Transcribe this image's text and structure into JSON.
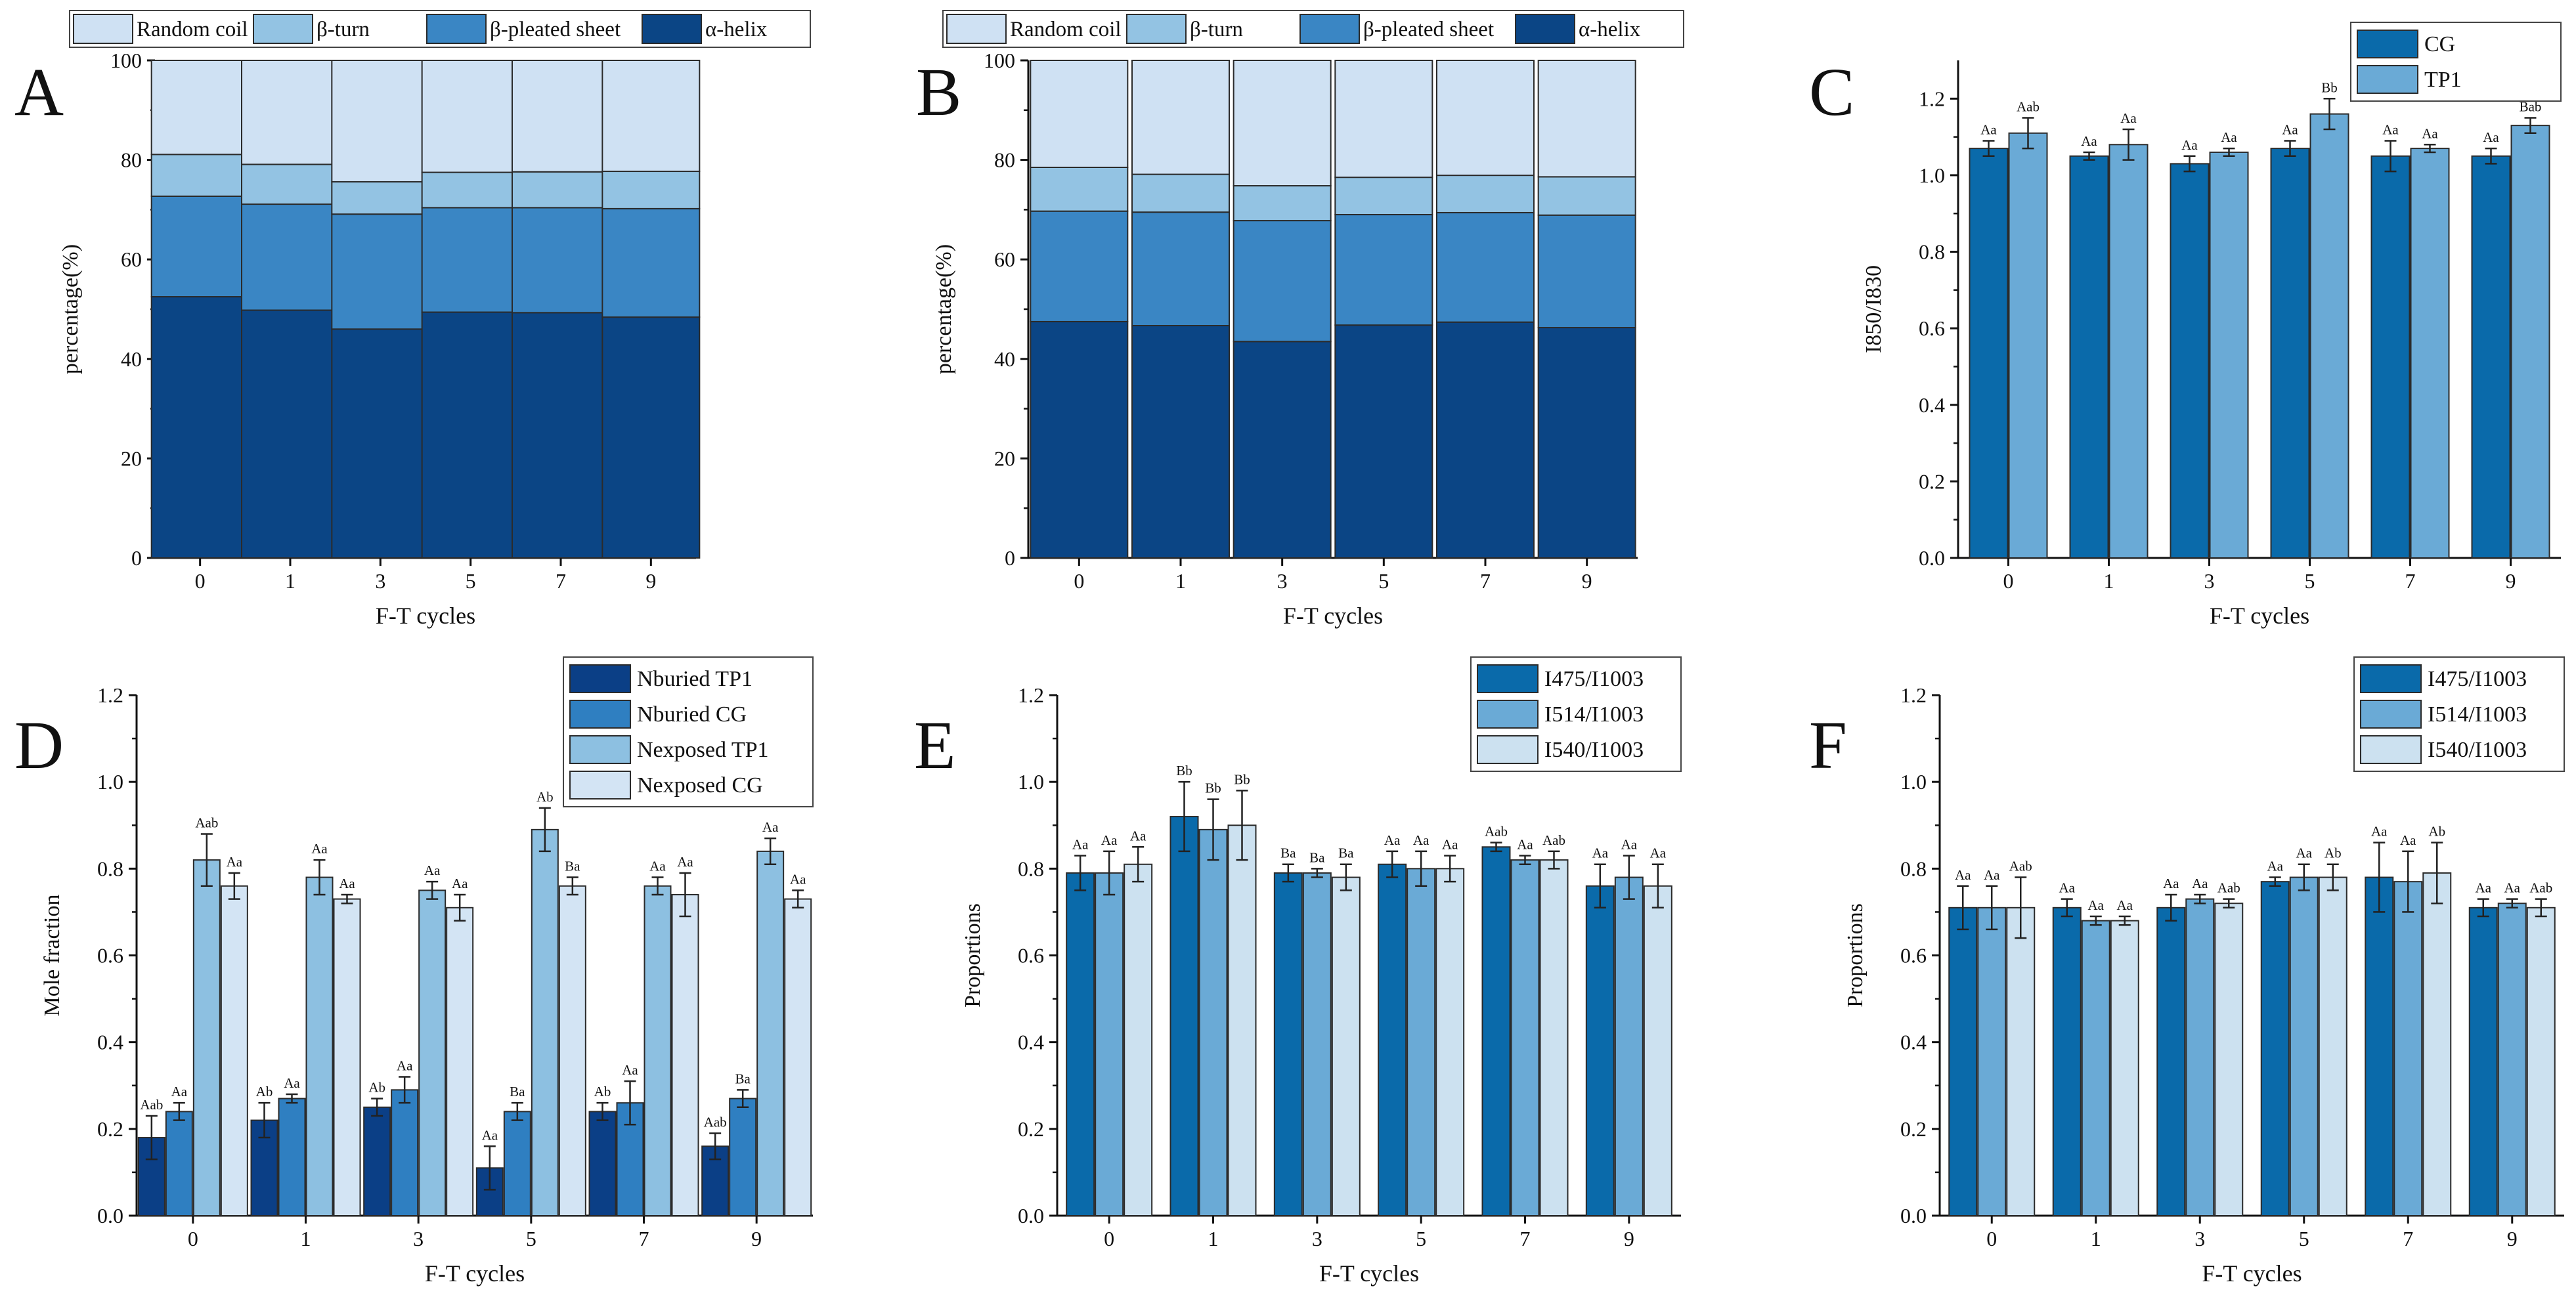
{
  "colors": {
    "helix": "#0b4585",
    "sheet": "#3a86c4",
    "turn": "#93c3e3",
    "coil": "#cfe1f3",
    "c1": "#0a6aaa",
    "c2": "#6aaad6",
    "c3": "#cce1f0",
    "d1": "#0b3f86",
    "d2": "#2f7fc1",
    "d3": "#8dc0e1",
    "d4": "#d3e4f4"
  },
  "chart_data": [
    {
      "panel": "A",
      "type": "bar",
      "stacked": true,
      "categories": [
        "0",
        "1",
        "3",
        "5",
        "7",
        "9"
      ],
      "xlabel": "F-T cycles",
      "ylabel": "percentage(%)",
      "ylim": [
        0,
        100
      ],
      "yticks": [
        "0",
        "20",
        "40",
        "60",
        "80",
        "100"
      ],
      "legend": [
        "Random coil",
        "β-turn",
        "β-pleated sheet",
        "α-helix"
      ],
      "legend_position": "top",
      "series": [
        {
          "name": "α-helix",
          "values": [
            52.5,
            49.8,
            46.0,
            49.4,
            49.3,
            48.4
          ]
        },
        {
          "name": "β-pleated sheet",
          "values": [
            20.2,
            21.3,
            23.1,
            21.0,
            21.1,
            21.8
          ]
        },
        {
          "name": "β-turn",
          "values": [
            8.4,
            8.0,
            6.5,
            7.1,
            7.2,
            7.5
          ]
        },
        {
          "name": "Random coil",
          "values": [
            18.9,
            20.9,
            24.4,
            22.5,
            22.4,
            22.3
          ]
        }
      ]
    },
    {
      "panel": "B",
      "type": "bar",
      "stacked": true,
      "categories": [
        "0",
        "1",
        "3",
        "5",
        "7",
        "9"
      ],
      "xlabel": "F-T cycles",
      "ylabel": "percentage(%)",
      "ylim": [
        0,
        100
      ],
      "yticks": [
        "0",
        "20",
        "40",
        "60",
        "80",
        "100"
      ],
      "legend": [
        "Random coil",
        "β-turn",
        "β-pleated sheet",
        "α-helix"
      ],
      "legend_position": "top",
      "series": [
        {
          "name": "α-helix",
          "values": [
            47.5,
            46.7,
            43.5,
            46.8,
            47.4,
            46.3
          ]
        },
        {
          "name": "β-pleated sheet",
          "values": [
            22.2,
            22.8,
            24.3,
            22.2,
            22.0,
            22.6
          ]
        },
        {
          "name": "β-turn",
          "values": [
            8.8,
            7.6,
            7.0,
            7.5,
            7.5,
            7.7
          ]
        },
        {
          "name": "Random coil",
          "values": [
            21.5,
            22.9,
            25.2,
            23.5,
            23.1,
            23.4
          ]
        }
      ]
    },
    {
      "panel": "C",
      "type": "bar",
      "categories": [
        "0",
        "1",
        "3",
        "5",
        "7",
        "9"
      ],
      "xlabel": "F-T cycles",
      "ylabel": "I850/I830",
      "ylim": [
        0,
        1.3
      ],
      "yticks": [
        "0.0",
        "0.2",
        "0.4",
        "0.6",
        "0.8",
        "1.0",
        "1.2"
      ],
      "legend_position": "top-right",
      "series": [
        {
          "name": "CG",
          "values": [
            1.07,
            1.05,
            1.03,
            1.07,
            1.05,
            1.05
          ],
          "errors": [
            0.02,
            0.01,
            0.02,
            0.02,
            0.04,
            0.02
          ],
          "labels": [
            "Aa",
            "Aa",
            "Aa",
            "Aa",
            "Aa",
            "Aa"
          ]
        },
        {
          "name": "TP1",
          "values": [
            1.11,
            1.08,
            1.06,
            1.16,
            1.07,
            1.13
          ],
          "errors": [
            0.04,
            0.04,
            0.01,
            0.04,
            0.01,
            0.02
          ],
          "labels": [
            "Aab",
            "Aa",
            "Aa",
            "Bb",
            "Aa",
            "Bab"
          ]
        }
      ]
    },
    {
      "panel": "D",
      "type": "bar",
      "categories": [
        "0",
        "1",
        "3",
        "5",
        "7",
        "9"
      ],
      "xlabel": "F-T cycles",
      "ylabel": "Mole fraction",
      "ylim": [
        0,
        1.2
      ],
      "yticks": [
        "0.0",
        "0.2",
        "0.4",
        "0.6",
        "0.8",
        "1.0",
        "1.2"
      ],
      "legend_position": "top-right",
      "series": [
        {
          "name": "Nburied TP1",
          "values": [
            0.18,
            0.22,
            0.25,
            0.11,
            0.24,
            0.16
          ],
          "errors": [
            0.05,
            0.04,
            0.02,
            0.05,
            0.02,
            0.03
          ],
          "labels": [
            "Aab",
            "Ab",
            "Ab",
            "Aa",
            "Ab",
            "Aab"
          ]
        },
        {
          "name": "Nburied CG",
          "values": [
            0.24,
            0.27,
            0.29,
            0.24,
            0.26,
            0.27
          ],
          "errors": [
            0.02,
            0.01,
            0.03,
            0.02,
            0.05,
            0.02
          ],
          "labels": [
            "Aa",
            "Aa",
            "Aa",
            "Ba",
            "Aa",
            "Ba"
          ]
        },
        {
          "name": "Nexposed TP1",
          "values": [
            0.82,
            0.78,
            0.75,
            0.89,
            0.76,
            0.84
          ],
          "errors": [
            0.06,
            0.04,
            0.02,
            0.05,
            0.02,
            0.03
          ],
          "labels": [
            "Aab",
            "Aa",
            "Aa",
            "Ab",
            "Aa",
            "Aa"
          ]
        },
        {
          "name": "Nexposed CG",
          "values": [
            0.76,
            0.73,
            0.71,
            0.76,
            0.74,
            0.73
          ],
          "errors": [
            0.03,
            0.01,
            0.03,
            0.02,
            0.05,
            0.02
          ],
          "labels": [
            "Aa",
            "Aa",
            "Aa",
            "Ba",
            "Aa",
            "Aa"
          ]
        }
      ]
    },
    {
      "panel": "E",
      "type": "bar",
      "categories": [
        "0",
        "1",
        "3",
        "5",
        "7",
        "9"
      ],
      "xlabel": "F-T cycles",
      "ylabel": "Proportions",
      "ylim": [
        0,
        1.2
      ],
      "yticks": [
        "0.0",
        "0.2",
        "0.4",
        "0.6",
        "0.8",
        "1.0",
        "1.2"
      ],
      "legend_position": "top-right",
      "series": [
        {
          "name": "I475/I1003",
          "values": [
            0.79,
            0.92,
            0.79,
            0.81,
            0.85,
            0.76
          ],
          "errors": [
            0.04,
            0.08,
            0.02,
            0.03,
            0.01,
            0.05
          ],
          "labels": [
            "Aa",
            "Bb",
            "Ba",
            "Aa",
            "Aab",
            "Aa"
          ]
        },
        {
          "name": "I514/I1003",
          "values": [
            0.79,
            0.89,
            0.79,
            0.8,
            0.82,
            0.78
          ],
          "errors": [
            0.05,
            0.07,
            0.01,
            0.04,
            0.01,
            0.05
          ],
          "labels": [
            "Aa",
            "Bb",
            "Ba",
            "Aa",
            "Aa",
            "Aa"
          ]
        },
        {
          "name": "I540/I1003",
          "values": [
            0.81,
            0.9,
            0.78,
            0.8,
            0.82,
            0.76
          ],
          "errors": [
            0.04,
            0.08,
            0.03,
            0.03,
            0.02,
            0.05
          ],
          "labels": [
            "Aa",
            "Bb",
            "Ba",
            "Aa",
            "Aab",
            "Aa"
          ]
        }
      ]
    },
    {
      "panel": "F",
      "type": "bar",
      "categories": [
        "0",
        "1",
        "3",
        "5",
        "7",
        "9"
      ],
      "xlabel": "F-T cycles",
      "ylabel": "Proportions",
      "ylim": [
        0,
        1.2
      ],
      "yticks": [
        "0.0",
        "0.2",
        "0.4",
        "0.6",
        "0.8",
        "1.0",
        "1.2"
      ],
      "legend_position": "top-right",
      "series": [
        {
          "name": "I475/I1003",
          "values": [
            0.71,
            0.71,
            0.71,
            0.77,
            0.78,
            0.71
          ],
          "errors": [
            0.05,
            0.02,
            0.03,
            0.01,
            0.08,
            0.02
          ],
          "labels": [
            "Aa",
            "Aa",
            "Aa",
            "Aa",
            "Aa",
            "Aa"
          ]
        },
        {
          "name": "I514/I1003",
          "values": [
            0.71,
            0.68,
            0.73,
            0.78,
            0.77,
            0.72
          ],
          "errors": [
            0.05,
            0.01,
            0.01,
            0.03,
            0.07,
            0.01
          ],
          "labels": [
            "Aa",
            "Aa",
            "Aa",
            "Aa",
            "Aa",
            "Aa"
          ]
        },
        {
          "name": "I540/I1003",
          "values": [
            0.71,
            0.68,
            0.72,
            0.78,
            0.79,
            0.71
          ],
          "errors": [
            0.07,
            0.01,
            0.01,
            0.03,
            0.07,
            0.02
          ],
          "labels": [
            "Aab",
            "Aa",
            "Aab",
            "Ab",
            "Ab",
            "Aab"
          ]
        }
      ]
    }
  ]
}
